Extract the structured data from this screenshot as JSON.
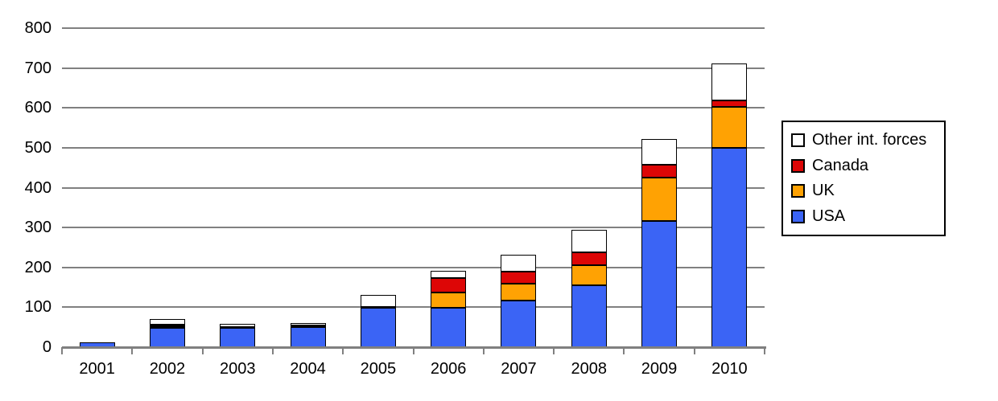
{
  "page": {
    "background": "#FFFFFF"
  },
  "chart_data": {
    "type": "bar",
    "stacked": true,
    "title": "",
    "xlabel": "",
    "ylabel": "",
    "categories": [
      "2001",
      "2002",
      "2003",
      "2004",
      "2005",
      "2006",
      "2007",
      "2008",
      "2009",
      "2010"
    ],
    "series": [
      {
        "name": "USA",
        "color": "#3B64F5",
        "values": [
          12,
          49,
          48,
          52,
          99,
          98,
          117,
          155,
          317,
          499
        ]
      },
      {
        "name": "UK",
        "color": "#FFA203",
        "values": [
          0,
          3,
          0,
          1,
          1,
          39,
          42,
          51,
          108,
          103
        ]
      },
      {
        "name": "Canada",
        "color": "#DD0606",
        "values": [
          0,
          4,
          2,
          1,
          1,
          36,
          30,
          32,
          32,
          16
        ]
      },
      {
        "name": "Other int. forces",
        "color": "#FFFFFF",
        "values": [
          0,
          14,
          8,
          6,
          30,
          18,
          43,
          57,
          64,
          93
        ]
      }
    ],
    "totals": [
      12,
      70,
      58,
      60,
      131,
      191,
      232,
      295,
      521,
      711
    ],
    "ylim": [
      0,
      800
    ],
    "ytick_interval": 100,
    "ytick_labels": [
      "0",
      "100",
      "200",
      "300",
      "400",
      "500",
      "600",
      "700",
      "800"
    ],
    "grid": true,
    "legend_position": "right",
    "legend_order": [
      "Other int. forces",
      "Canada",
      "UK",
      "USA"
    ],
    "colors": {
      "axis": "#808080",
      "grid": "#808080",
      "segment_border": "#000000",
      "text": "#000000",
      "legend_border": "#000000",
      "legend_background": "#FFFFFF"
    }
  }
}
